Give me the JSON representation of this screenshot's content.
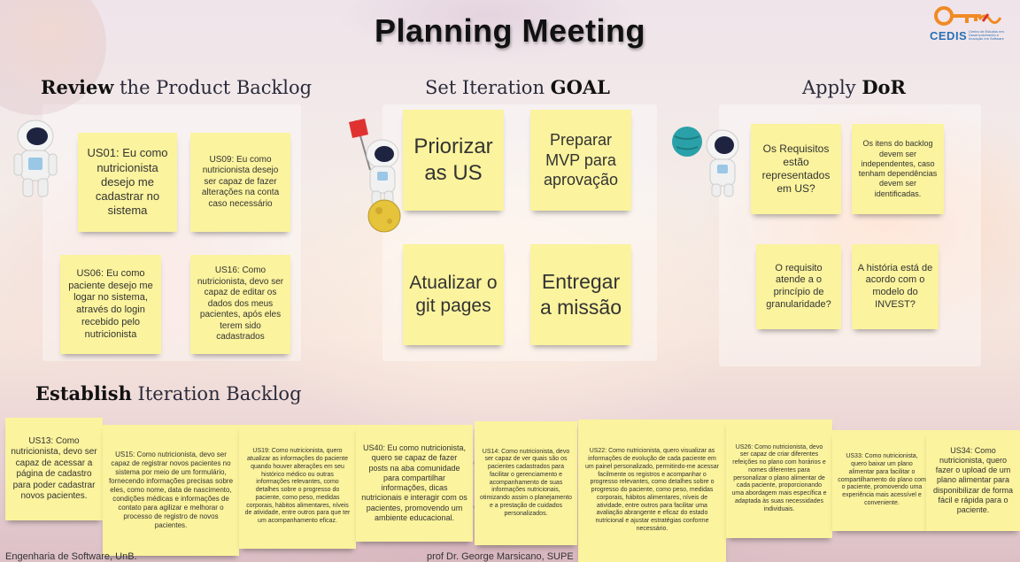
{
  "header": {
    "title": "Planning Meeting",
    "logo_text": "CEDIS",
    "logo_subtitle": "Centro de Estudos em Desenvolvimento e Inovação em Software"
  },
  "sections": {
    "review": {
      "bold": "Review",
      "rest": " the Product Backlog"
    },
    "goal": {
      "rest": "Set Iteration ",
      "bold": "GOAL"
    },
    "dor": {
      "rest": "Apply ",
      "bold": "DoR"
    },
    "backlog": {
      "bold": "Establish",
      "rest": " Iteration Backlog"
    }
  },
  "review_notes": [
    "US01: Eu como nutricionista desejo me cadastrar no sistema",
    "US09: Eu como nutricionista desejo ser capaz de fazer alterações na conta caso necessário",
    "US06: Eu como paciente desejo me logar no sistema, através do login recebido pelo nutricionista",
    "US16: Como nutricionista, devo ser capaz de editar os dados dos meus pacientes, após eles terem sido cadastrados"
  ],
  "goal_notes": [
    "Priorizar as US",
    "Preparar MVP para aprovação",
    "Atualizar o git pages",
    "Entregar a missão"
  ],
  "dor_notes": [
    "Os Requisitos estão representados em US?",
    "Os itens do backlog devem ser independentes, caso tenham dependências devem ser identificadas.",
    "O requisito atende a o princípio de granularidade?",
    "A história está de acordo com o modelo do INVEST?"
  ],
  "backlog_notes": [
    "US13: Como nutricionista, devo ser capaz de acessar a página de cadastro para poder cadastrar novos pacientes.",
    "US15: Como nutricionista, devo ser capaz de registrar novos pacientes no sistema por meio de um formulário, fornecendo informações precisas sobre eles, como nome, data de nascimento, condições médicas e informações de contato para agilizar e melhorar o processo de registro de novos pacientes.",
    "US19: Como nutricionista, quero atualizar as informações do paciente quando houver alterações em seu histórico médico ou outras informações relevantes, como detalhes sobre o progresso do paciente, como peso, medidas corporais, hábitos alimentares, níveis de atividade, entre outros para que ter um acompanhamento eficaz.",
    "US40: Eu como nutricionista, quero se capaz de fazer posts na aba comunidade para compartilhar informações, dicas nutricionais e interagir com os pacientes, promovendo um ambiente educacional.",
    "US14: Como nutricionista, devo ser capaz de ver quais são os pacientes cadastrados para facilitar o gerenciamento e acompanhamento de suas informações nutricionais, otimizando assim o planejamento e a prestação de cuidados personalizados.",
    "US22: Como nutricionista, quero visualizar as informações de evolução de cada paciente em um painel personalizado, permitindo-me acessar facilmente os registros e acompanhar o progresso relevantes, como detalhes sobre o progresso do paciente, como peso, medidas corporais, hábitos alimentares, níveis de atividade, entre outros para facilitar uma avaliação abrangente e eficaz do estado nutricional e ajustar estratégias conforme necessário.",
    "US26: Como nutricionista, devo ser capaz de criar diferentes refeições no plano com horários e nomes diferentes para personalizar o plano alimentar de cada paciente, proporcionando uma abordagem mais específica e adaptada às suas necessidades individuais.",
    "US33: Como nutricionista, quero baixar um plano alimentar para facilitar o compartilhamento do plano com o paciente, promovendo uma experiência mais acessível e conveniente.",
    "US34: Como nutricionista, quero fazer o upload de um plano alimentar para disponibilizar de forma fácil e rápida para o paciente."
  ],
  "footer": {
    "left": "Engenharia de Software, UnB.",
    "center": "prof Dr. George Marsicano, SUPE"
  },
  "colors": {
    "sticky": "#fbf39d",
    "title": "#111111",
    "logo_orange": "#f08a24",
    "logo_blue": "#2a6fb5"
  }
}
